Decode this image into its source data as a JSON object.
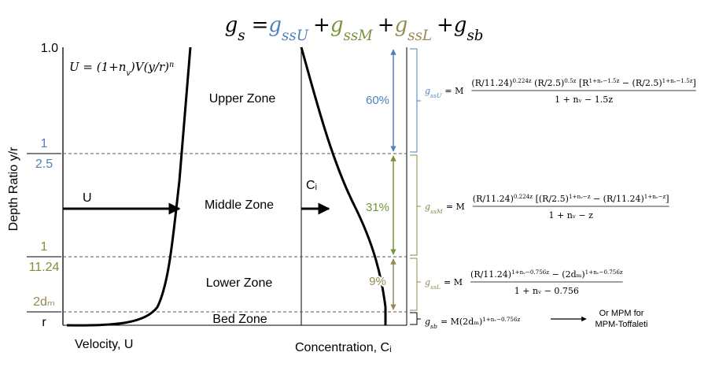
{
  "title": {
    "lhs": {
      "g": "g",
      "sub": "s"
    },
    "eq": "=",
    "plus": "+",
    "terms": [
      {
        "g": "g",
        "sub": "ssU",
        "color": "#4f81bd"
      },
      {
        "g": "g",
        "sub": "ssM",
        "color": "#77933c"
      },
      {
        "g": "g",
        "sub": "ssL",
        "color": "#948a54"
      },
      {
        "g": "g",
        "sub": "sb",
        "color": "#000000"
      }
    ]
  },
  "velocity_law": [
    "U = (1+n",
    {
      "sub": "v"
    },
    ")V(y/r)",
    {
      "sup": "n"
    }
  ],
  "y_axis": {
    "label": "Depth Ratio y/r",
    "top": "1.0",
    "fractions": [
      {
        "num": "1",
        "den": "2.5",
        "color": "#4f81bd"
      },
      {
        "num": "1",
        "den": "11.24",
        "color": "#77933c"
      },
      {
        "num": "2dₘ",
        "den": "r",
        "color": "#948a54"
      }
    ]
  },
  "zones": [
    "Upper Zone",
    "Middle Zone",
    "Lower Zone",
    "Bed Zone"
  ],
  "arrows": {
    "u": "U",
    "c": "Cᵢ"
  },
  "shares": [
    {
      "label": "60%",
      "color": "#4f81bd"
    },
    {
      "label": "31%",
      "color": "#77933c"
    },
    {
      "label": "9%",
      "color": "#948a54"
    }
  ],
  "x_labels": {
    "velocity": "Velocity, U",
    "concentration": "Concentration, Cᵢ"
  },
  "formulas": [
    {
      "g": "g",
      "sub": "ssU",
      "color": "#4f81bd",
      "eq": "= M",
      "num": [
        "(R/11.24)",
        {
          "sup": "0.224z"
        },
        " (R/2.5)",
        {
          "sup": "0.5z"
        },
        " [R",
        {
          "sup": "1+nᵥ−1.5z"
        },
        " − (R/2.5)",
        {
          "sup": "1+nᵥ−1.5z"
        },
        "]"
      ],
      "den": "1 + nᵥ − 1.5z"
    },
    {
      "g": "g",
      "sub": "ssM",
      "color": "#77933c",
      "eq": "= M",
      "num": [
        "(R/11.24)",
        {
          "sup": "0.224z"
        },
        " [(R/2.5)",
        {
          "sup": "1+nᵥ−z"
        },
        " − (R/11.24)",
        {
          "sup": "1+nᵥ−z"
        },
        "]"
      ],
      "den": "1 + nᵥ − z"
    },
    {
      "g": "g",
      "sub": "ssL",
      "color": "#948a54",
      "eq": "= M",
      "num": [
        "(R/11.24)",
        {
          "sup": "1+nᵥ−0.756z"
        },
        " − (2dₘ)",
        {
          "sup": "1+nᵥ−0.756z"
        }
      ],
      "den": "1 + nᵥ − 0.756"
    },
    {
      "g": "g",
      "sub": "sb",
      "color": "#000000",
      "eq": "= M(2dₘ)",
      "num": [
        {
          "sup": "1+nᵥ−0.756z"
        }
      ]
    }
  ],
  "note": [
    "Or MPM for",
    "MPM-Toffaleti"
  ]
}
